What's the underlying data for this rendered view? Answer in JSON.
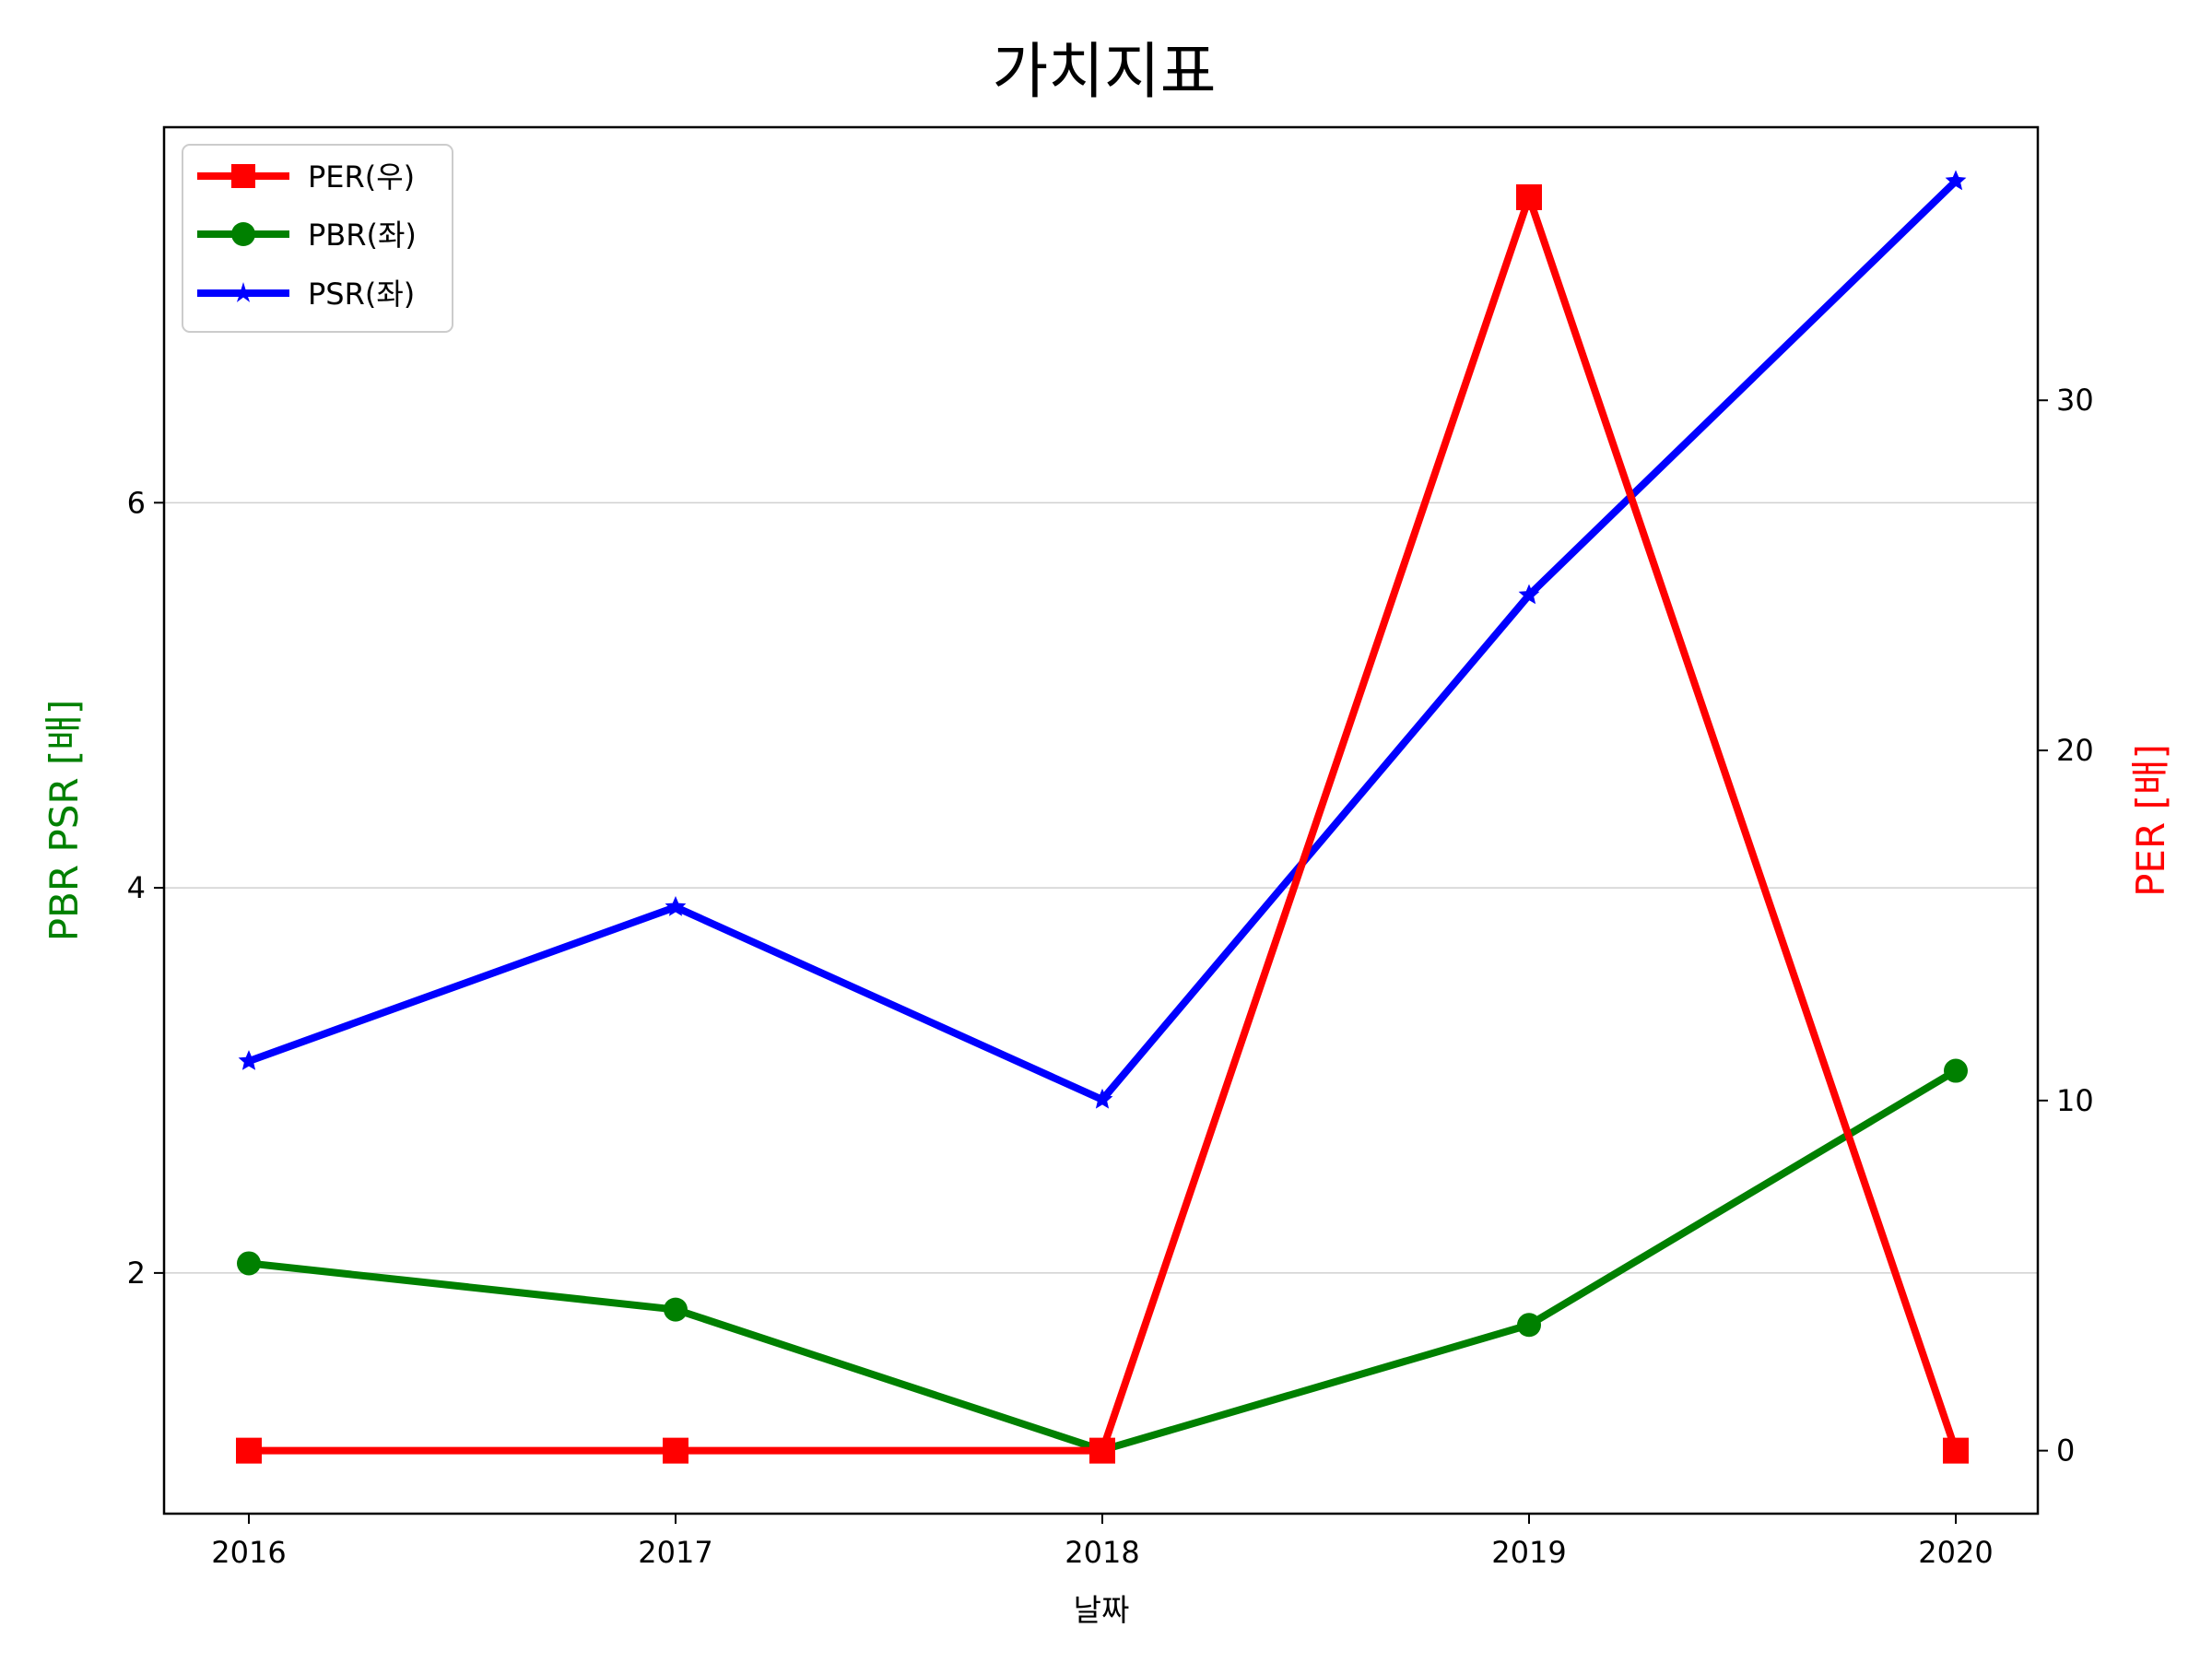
{
  "chart_data": {
    "type": "line",
    "title": "가치지표",
    "xlabel": "날짜",
    "ylabel_left": "PBR PSR [배]",
    "ylabel_right": "PER [배]",
    "categories": [
      "2016",
      "2017",
      "2018",
      "2019",
      "2020"
    ],
    "left_axis": {
      "ylim": [
        0.75,
        7.95
      ],
      "ticks": [
        2,
        4,
        6
      ],
      "tick_labels": [
        "2",
        "4",
        "6"
      ],
      "label_color": "#008000"
    },
    "right_axis": {
      "ylim": [
        -1.8,
        37.8
      ],
      "ticks": [
        0,
        10,
        20,
        30
      ],
      "tick_labels": [
        "0",
        "10",
        "20",
        "30"
      ],
      "label_color": "#ff0000"
    },
    "series": [
      {
        "name": "PER(우)",
        "axis": "right",
        "color": "#ff0000",
        "marker": "square",
        "values": [
          0,
          0,
          0,
          35.8,
          0
        ]
      },
      {
        "name": "PBR(좌)",
        "axis": "left",
        "color": "#008000",
        "marker": "circle",
        "values": [
          2.05,
          1.81,
          1.08,
          1.73,
          3.05
        ]
      },
      {
        "name": "PSR(좌)",
        "axis": "left",
        "color": "#0000ff",
        "marker": "star",
        "values": [
          3.1,
          3.9,
          2.9,
          5.52,
          7.67
        ]
      }
    ],
    "grid": "horizontal",
    "legend": "top-left"
  }
}
